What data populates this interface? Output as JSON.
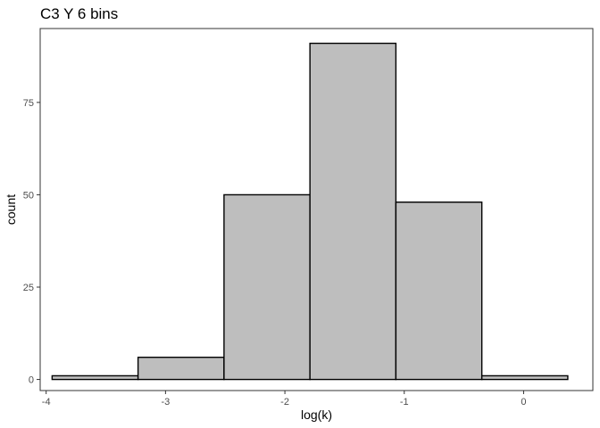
{
  "chart_data": {
    "type": "bar",
    "title": "C3 Y 6 bins",
    "xlabel": "log(k)",
    "ylabel": "count",
    "xlim": [
      -4.05,
      0.58
    ],
    "ylim": [
      -3,
      95
    ],
    "x_ticks": [
      -4,
      -3,
      -2,
      -1,
      0
    ],
    "y_ticks": [
      0,
      25,
      50,
      75
    ],
    "grid": false,
    "bins": [
      {
        "x0": -3.95,
        "x1": -3.23,
        "count": 1
      },
      {
        "x0": -3.23,
        "x1": -2.51,
        "count": 6
      },
      {
        "x0": -2.51,
        "x1": -1.79,
        "count": 50
      },
      {
        "x0": -1.79,
        "x1": -1.07,
        "count": 91
      },
      {
        "x0": -1.07,
        "x1": -0.35,
        "count": 48
      },
      {
        "x0": -0.35,
        "x1": 0.37,
        "count": 1
      }
    ],
    "colors": {
      "fill": "#bebebe",
      "stroke": "#000000"
    }
  }
}
